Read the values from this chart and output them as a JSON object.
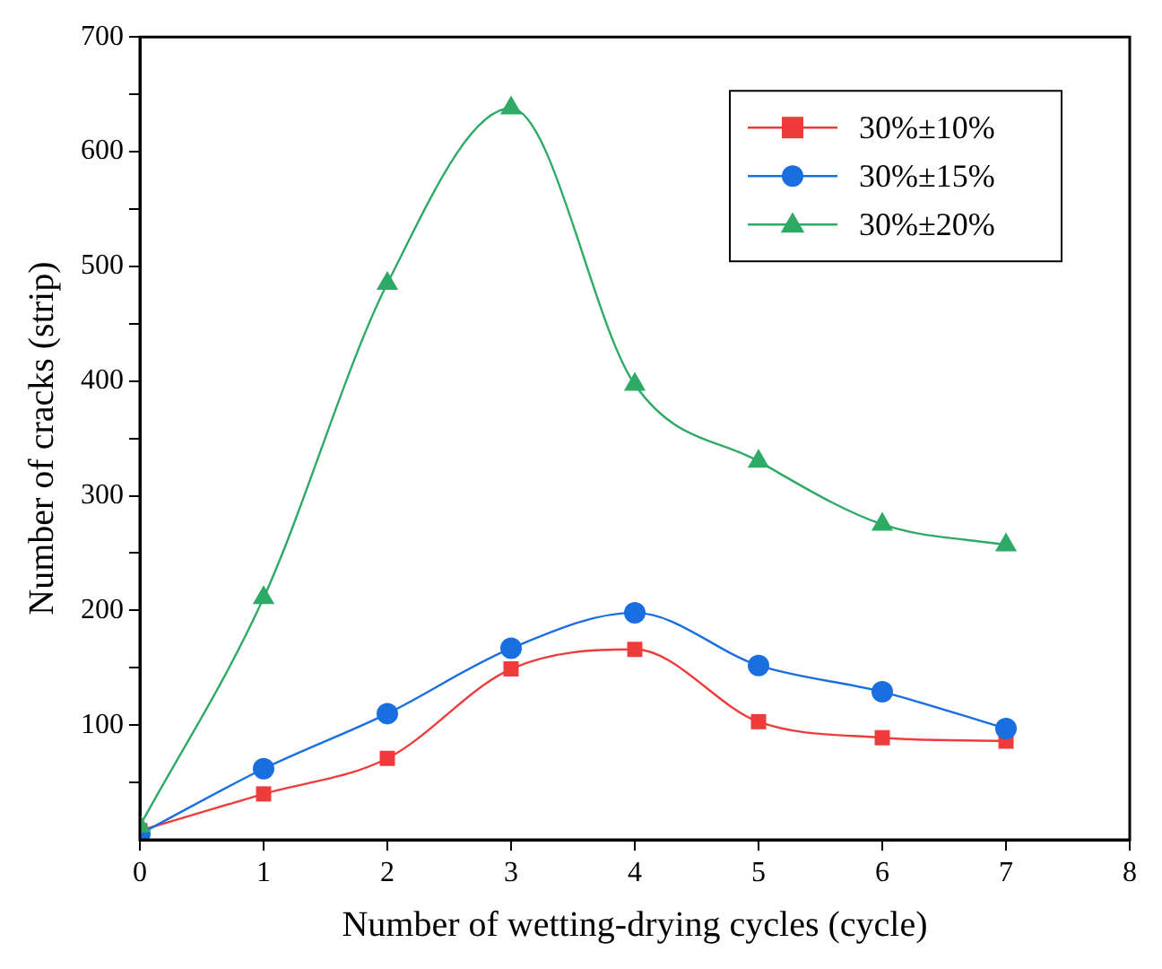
{
  "chart_data": {
    "type": "line",
    "xlabel": "Number of wetting-drying cycles (cycle)",
    "ylabel": "Number of cracks (strip)",
    "x": [
      0,
      1,
      2,
      3,
      4,
      5,
      6,
      7
    ],
    "series": [
      {
        "name": "30%±10%",
        "color": "#ef3b3b",
        "marker": "square",
        "values": [
          8,
          40,
          71,
          149,
          166,
          103,
          89,
          86
        ]
      },
      {
        "name": "30%±15%",
        "color": "#1a6fe0",
        "marker": "circle",
        "values": [
          5,
          62,
          110,
          167,
          198,
          152,
          129,
          97
        ]
      },
      {
        "name": "30%±20%",
        "color": "#2eaa66",
        "marker": "triangle",
        "values": [
          12,
          211,
          485,
          638,
          397,
          330,
          275,
          257
        ]
      }
    ],
    "xlim": [
      0,
      8
    ],
    "xticks": [
      0,
      1,
      2,
      3,
      4,
      5,
      6,
      7,
      8
    ],
    "ylim": [
      0,
      700
    ],
    "yticks": [
      {
        "value": 50,
        "label": null
      },
      100,
      {
        "value": 150,
        "label": null
      },
      200,
      {
        "value": 250,
        "label": null
      },
      300,
      {
        "value": 350,
        "label": null
      },
      400,
      {
        "value": 450,
        "label": null
      },
      500,
      {
        "value": 550,
        "label": null
      },
      600,
      {
        "value": 650,
        "label": null
      },
      700
    ],
    "grid": false,
    "legend": "top right"
  }
}
